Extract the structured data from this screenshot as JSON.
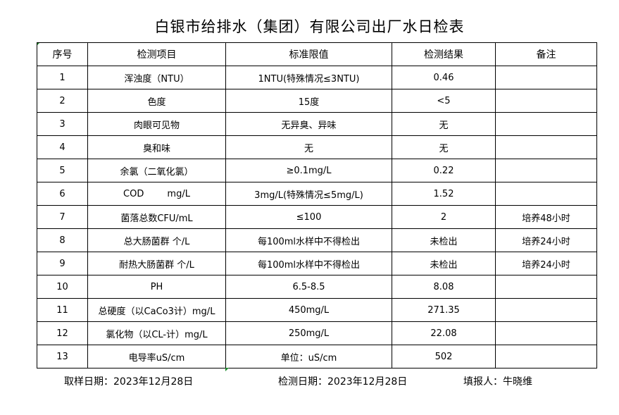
{
  "title": "白银市给排水（集团）有限公司出厂水日检表",
  "table": {
    "headers": [
      "序号",
      "检测项目",
      "标准限值",
      "检测结果",
      "备注"
    ],
    "rows": [
      [
        "1",
        "浑浊度（NTU）",
        "1NTU(特殊情况≤3NTU)",
        "0.46",
        ""
      ],
      [
        "2",
        "色度",
        "15度",
        "<5",
        ""
      ],
      [
        "3",
        "肉眼可见物",
        "无异臭、异味",
        "无",
        ""
      ],
      [
        "4",
        "臭和味",
        "无",
        "无",
        ""
      ],
      [
        "5",
        "余氯（二氧化氯）",
        "≥0.1mg/L",
        "0.22",
        ""
      ],
      [
        "6",
        "COD        mg/L",
        "3mg/L(特殊情况≤5mg/L)",
        "1.52",
        ""
      ],
      [
        "7",
        "菌落总数CFU/mL",
        "≤100",
        "2",
        "培养48小时"
      ],
      [
        "8",
        "总大肠菌群 个/L",
        "每100ml水样中不得检出",
        "未检出",
        "培养24小时"
      ],
      [
        "9",
        "耐热大肠菌群 个/L",
        "每100ml水样中不得检出",
        "未检出",
        "培养24小时"
      ],
      [
        "10",
        "PH",
        "6.5-8.5",
        "8.08",
        ""
      ],
      [
        "11",
        "总硬度（以CaCo3计）mg/L",
        "450mg/L",
        "271.35",
        ""
      ],
      [
        "12",
        "氯化物（以CL-计）mg/L",
        "250mg/L",
        "22.08",
        ""
      ],
      [
        "13",
        "电导率uS/cm",
        "单位：uS/cm",
        "502",
        ""
      ]
    ]
  },
  "footer": {
    "sample_date": "取样日期：2023年12月28日",
    "test_date": "检测日期：2023年12月28日",
    "reporter": "填报人：牛晓维"
  }
}
